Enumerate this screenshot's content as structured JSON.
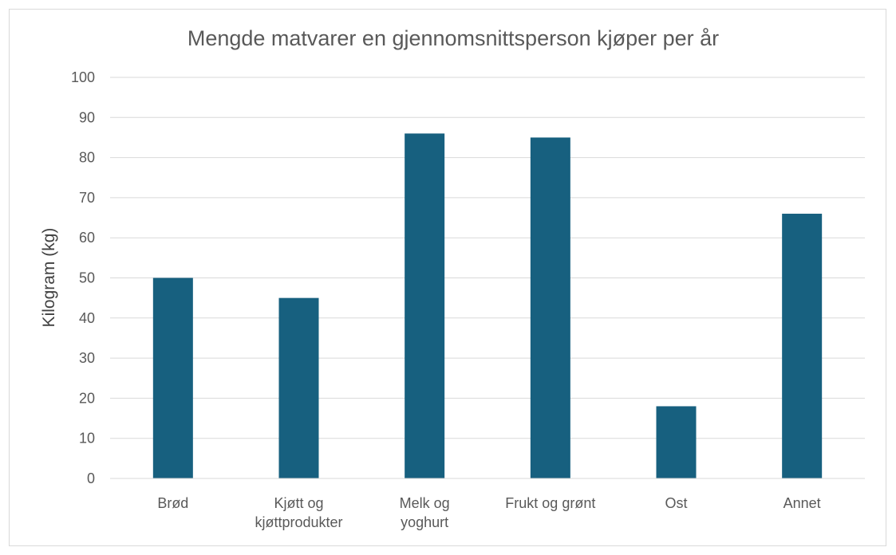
{
  "chart_data": {
    "type": "bar",
    "title": "Mengde matvarer en gjennomsnittsperson kjøper per år",
    "xlabel": "",
    "ylabel": "Kilogram (kg)",
    "categories": [
      "Brød",
      "Kjøtt og kjøttprodukter",
      "Melk og yoghurt",
      "Frukt og grønt",
      "Ost",
      "Annet"
    ],
    "category_lines": [
      [
        "Brød"
      ],
      [
        "Kjøtt og",
        "kjøttprodukter"
      ],
      [
        "Melk og",
        "yoghurt"
      ],
      [
        "Frukt og grønt"
      ],
      [
        "Ost"
      ],
      [
        "Annet"
      ]
    ],
    "values": [
      50,
      45,
      86,
      85,
      18,
      66
    ],
    "ylim": [
      0,
      100
    ],
    "yticks": [
      0,
      10,
      20,
      30,
      40,
      50,
      60,
      70,
      80,
      90,
      100
    ],
    "grid": true,
    "legend": "none",
    "bar_color": "#17607f",
    "grid_color": "#d9d9d9"
  }
}
